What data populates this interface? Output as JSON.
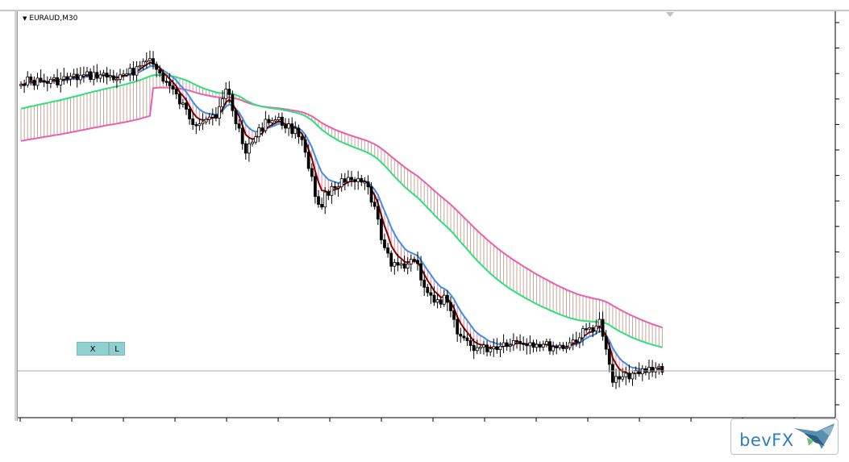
{
  "chart": {
    "symbol": "EURAUD,M30",
    "buttons": {
      "close_label": "X",
      "l_label": "L"
    },
    "logo_text": "bevFX",
    "colors": {
      "candle": "#000000",
      "fast_ma": "#8b0000",
      "mid_ma": "#3d8ee8",
      "slow_ma": "#2ee07a",
      "slowest_ma": "#ec5fa9",
      "fill_bear": "#f48aa0",
      "fill_bull": "#3fb0c8",
      "fill_band": "#c6a79a",
      "hline": "#a8a8a8",
      "button_bg": "#8fd0d0",
      "logo": "#2f7fc1"
    }
  }
}
